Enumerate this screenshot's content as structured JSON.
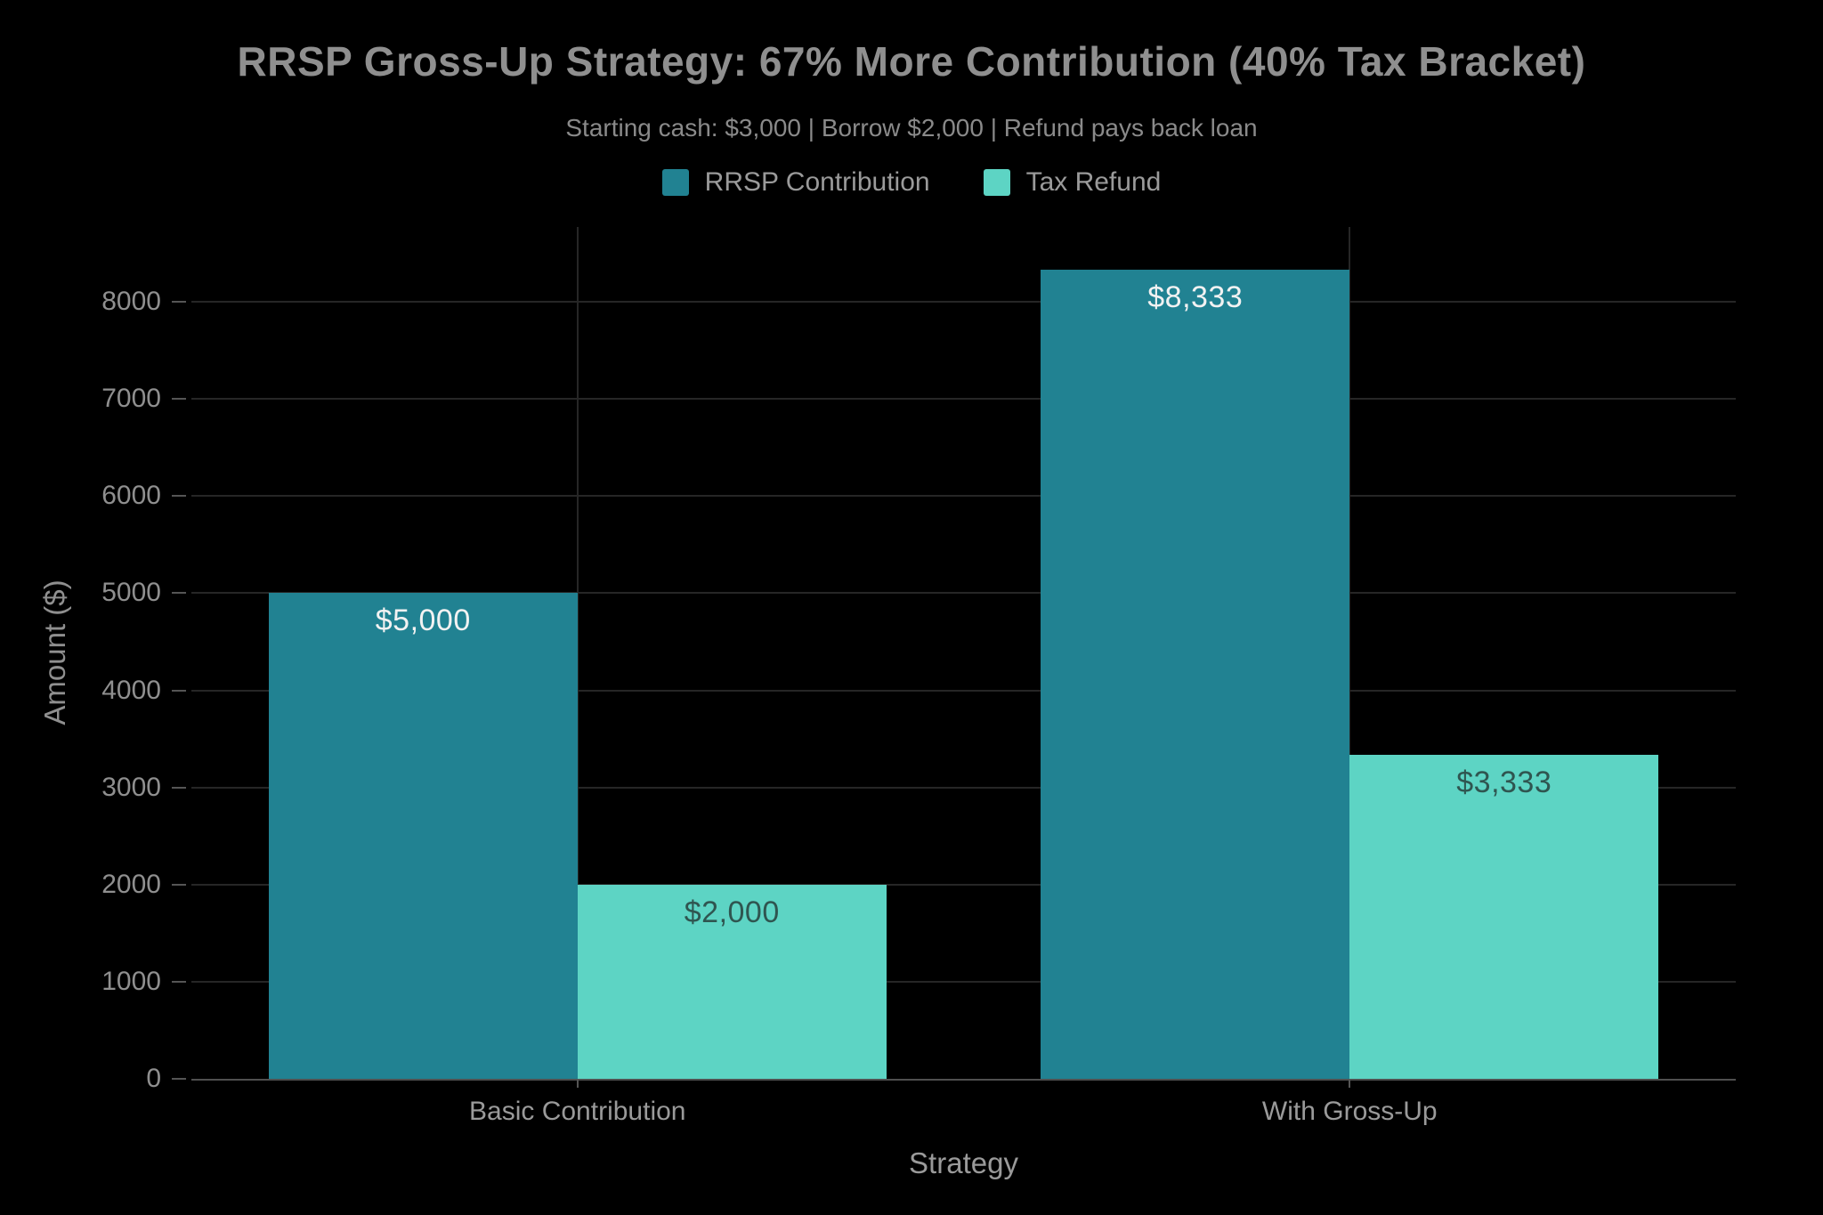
{
  "theme": {
    "background": "#000000",
    "title_color": "#8f8f8f",
    "subtitle_color": "#8a8a8a",
    "tick_color": "#8f8f8f",
    "category_color": "#9a9a9a",
    "gridline_color": "#262626",
    "axis_line_color": "#4f4f4f",
    "series1_color": "#218292",
    "series2_color": "#5DD4C4"
  },
  "chart_data": {
    "type": "bar",
    "title": "RRSP Gross-Up Strategy: 67% More Contribution (40% Tax Bracket)",
    "subtitle": "Starting cash: $3,000 | Borrow $2,000 | Refund pays back loan",
    "categories": [
      "Basic Contribution",
      "With Gross-Up"
    ],
    "series": [
      {
        "name": "RRSP Contribution",
        "color": "#218292",
        "values": [
          5000,
          8333
        ],
        "labels": [
          "$5,000",
          "$8,333"
        ],
        "label_color": "#f2f2f2"
      },
      {
        "name": "Tax Refund",
        "color": "#5DD4C4",
        "values": [
          2000,
          3333
        ],
        "labels": [
          "$2,000",
          "$3,333"
        ],
        "label_color": "#2f5550"
      }
    ],
    "xlabel": "Strategy",
    "ylabel": "Amount ($)",
    "ylim": [
      0,
      8770
    ],
    "yticks": [
      0,
      1000,
      2000,
      3000,
      4000,
      5000,
      6000,
      7000,
      8000
    ],
    "grid": true,
    "vertical_grid_at_category_centers": true,
    "legend_position": "top",
    "bar_label_position": "inside-top"
  }
}
